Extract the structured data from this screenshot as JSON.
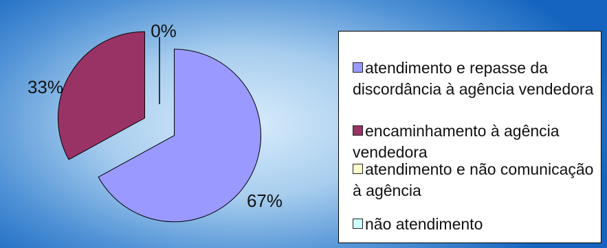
{
  "chart_data": {
    "type": "pie",
    "title": "",
    "slices": [
      {
        "label": "atendimento e repasse da discordância à agência vendedora",
        "value": 67,
        "value_label": "67%",
        "color": "#9999ff"
      },
      {
        "label": "encaminhamento à agência vendedora",
        "value": 33,
        "value_label": "33%",
        "color": "#993366"
      },
      {
        "label": "atendimento e não comunicação à agência",
        "value": 0,
        "value_label": "0%",
        "color": "#ffffcc"
      },
      {
        "label": "não atendimento",
        "value": 0,
        "value_label": "",
        "color": "#ccffff"
      }
    ],
    "legend_position": "right",
    "exploded": true
  }
}
